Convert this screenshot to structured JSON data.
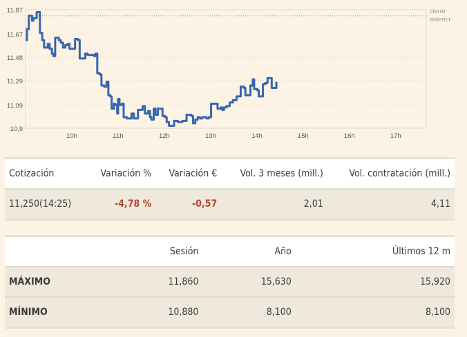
{
  "chart_data": {
    "type": "line",
    "title": "",
    "xlabel": "",
    "ylabel": "",
    "xlim": [
      9.0,
      17.66
    ],
    "ylim": [
      10.9,
      11.87
    ],
    "grid": true,
    "x_ticks": [
      {
        "v": 10,
        "label": "10h"
      },
      {
        "v": 11,
        "label": "11h"
      },
      {
        "v": 12,
        "label": "12h"
      },
      {
        "v": 13,
        "label": "13h"
      },
      {
        "v": 14,
        "label": "14h"
      },
      {
        "v": 15,
        "label": "15h"
      },
      {
        "v": 16,
        "label": "16h"
      },
      {
        "v": 17,
        "label": "17h"
      }
    ],
    "y_ticks": [
      {
        "v": 11.87,
        "label": "11,87"
      },
      {
        "v": 11.67,
        "label": "11,67"
      },
      {
        "v": 11.48,
        "label": "11,48"
      },
      {
        "v": 11.29,
        "label": "11,29"
      },
      {
        "v": 11.09,
        "label": "11,09"
      },
      {
        "v": 10.9,
        "label": "10,9"
      }
    ],
    "reference_line": {
      "value": 11.82,
      "label_line1": "cierre",
      "label_line2": "anterior"
    },
    "line_color": "#3566b0",
    "x": [
      9.0,
      9.03,
      9.07,
      9.11,
      9.14,
      9.17,
      9.21,
      9.24,
      9.29,
      9.31,
      9.36,
      9.4,
      9.45,
      9.48,
      9.52,
      9.57,
      9.6,
      9.64,
      9.69,
      9.72,
      9.76,
      9.81,
      9.86,
      9.91,
      9.95,
      10.05,
      10.07,
      10.13,
      10.17,
      10.24,
      10.29,
      10.34,
      10.43,
      10.48,
      10.51,
      10.55,
      10.6,
      10.64,
      10.7,
      10.75,
      10.79,
      10.83,
      10.86,
      10.91,
      10.94,
      10.98,
      11.0,
      11.03,
      11.08,
      11.12,
      11.19,
      11.26,
      11.29,
      11.34,
      11.38,
      11.43,
      11.48,
      11.53,
      11.58,
      11.65,
      11.69,
      11.72,
      11.77,
      11.81,
      11.86,
      11.91,
      11.96,
      12.01,
      12.05,
      12.1,
      12.17,
      12.21,
      12.29,
      12.39,
      12.43,
      12.48,
      12.58,
      12.62,
      12.67,
      12.72,
      12.77,
      12.82,
      12.91,
      12.96,
      13.01,
      13.1,
      13.15,
      13.22,
      13.25,
      13.29,
      13.34,
      13.41,
      13.48,
      13.56,
      13.62,
      13.65,
      13.72,
      13.75,
      13.82,
      13.86,
      13.91,
      13.94,
      14.01,
      14.04,
      14.08,
      14.13,
      14.18,
      14.23,
      14.28,
      14.32,
      14.39,
      14.42
    ],
    "y": [
      11.62,
      11.71,
      11.82,
      11.82,
      11.78,
      11.8,
      11.8,
      11.85,
      11.85,
      11.68,
      11.62,
      11.56,
      11.56,
      11.59,
      11.55,
      11.51,
      11.49,
      11.64,
      11.64,
      11.62,
      11.6,
      11.56,
      11.58,
      11.59,
      11.55,
      11.55,
      11.63,
      11.62,
      11.47,
      11.47,
      11.51,
      11.5,
      11.5,
      11.49,
      11.51,
      11.35,
      11.34,
      11.25,
      11.24,
      11.28,
      11.17,
      11.16,
      11.06,
      11.1,
      11.09,
      11.02,
      11.14,
      11.09,
      11.1,
      10.99,
      10.98,
      10.98,
      11.02,
      10.98,
      10.98,
      11.05,
      11.05,
      11.08,
      11.02,
      11.04,
      10.99,
      10.97,
      11.06,
      11.01,
      11.06,
      11.06,
      11.0,
      10.99,
      10.95,
      10.92,
      10.92,
      10.96,
      10.95,
      10.96,
      10.96,
      11.01,
      11.0,
      10.94,
      10.97,
      10.99,
      10.98,
      10.99,
      10.98,
      10.99,
      11.1,
      11.1,
      11.06,
      11.07,
      11.05,
      11.07,
      11.08,
      11.11,
      11.13,
      11.16,
      11.16,
      11.24,
      11.23,
      11.17,
      11.17,
      11.25,
      11.3,
      11.22,
      11.21,
      11.16,
      11.16,
      11.26,
      11.27,
      11.31,
      11.31,
      11.23,
      11.23,
      11.28
    ]
  },
  "quote_table": {
    "headers": [
      "Cotización",
      "Variación %",
      "Variación €",
      "Vol. 3 meses (mill.)",
      "Vol. contratación (mill.)"
    ],
    "values": [
      "11,250(14:25)",
      "-4,78 %",
      "-0,57",
      "2,01",
      "4,11"
    ],
    "negative_color": "#b5452b"
  },
  "range_table": {
    "headers": [
      "",
      "Sesión",
      "Año",
      "Últimos 12 m"
    ],
    "rows": [
      {
        "label": "MÁXIMO",
        "values": [
          "11,860",
          "15,630",
          "15,920"
        ]
      },
      {
        "label": "MÍNIMO",
        "values": [
          "10,880",
          "8,100",
          "8,100"
        ]
      }
    ]
  }
}
